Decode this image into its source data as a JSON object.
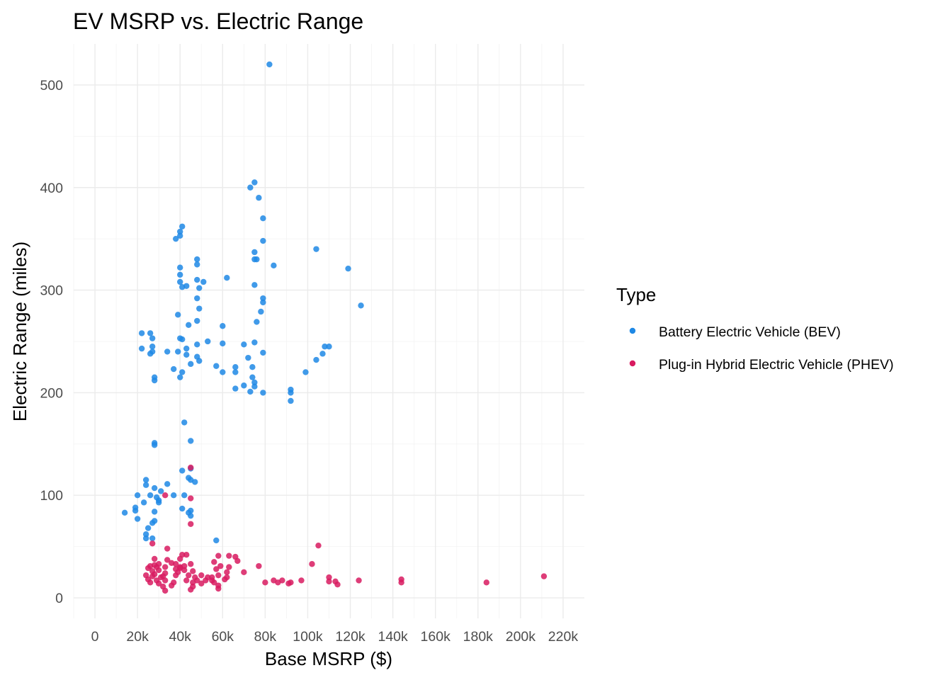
{
  "chart_data": {
    "type": "scatter",
    "title": "EV MSRP vs. Electric Range",
    "xlabel": "Base MSRP ($)",
    "ylabel": "Electric Range (miles)",
    "xlim": [
      -10000,
      230000
    ],
    "ylim": [
      -20,
      540
    ],
    "x_ticks": [
      0,
      20000,
      40000,
      60000,
      80000,
      100000,
      120000,
      140000,
      160000,
      180000,
      200000,
      220000
    ],
    "x_tick_labels": [
      "0",
      "20k",
      "40k",
      "60k",
      "80k",
      "100k",
      "120k",
      "140k",
      "160k",
      "180k",
      "200k",
      "220k"
    ],
    "y_ticks": [
      0,
      100,
      200,
      300,
      400,
      500
    ],
    "y_tick_labels": [
      "0",
      "100",
      "200",
      "300",
      "400",
      "500"
    ],
    "grid": true,
    "legend": {
      "title": "Type",
      "position": "right"
    },
    "series": [
      {
        "name": "Battery Electric Vehicle (BEV)",
        "color": "#1E88E5",
        "points": [
          [
            82000,
            520
          ],
          [
            75000,
            405
          ],
          [
            73000,
            400
          ],
          [
            77000,
            390
          ],
          [
            79000,
            370
          ],
          [
            79000,
            348
          ],
          [
            75000,
            337
          ],
          [
            75000,
            330
          ],
          [
            76000,
            330
          ],
          [
            84000,
            324
          ],
          [
            75000,
            305
          ],
          [
            79000,
            292
          ],
          [
            79000,
            288
          ],
          [
            78000,
            279
          ],
          [
            76000,
            269
          ],
          [
            70000,
            247
          ],
          [
            75000,
            249
          ],
          [
            72000,
            234
          ],
          [
            74000,
            225
          ],
          [
            66000,
            225
          ],
          [
            66000,
            220
          ],
          [
            74000,
            215
          ],
          [
            75000,
            210
          ],
          [
            75000,
            206
          ],
          [
            70000,
            207
          ],
          [
            66000,
            204
          ],
          [
            73000,
            201
          ],
          [
            79000,
            200
          ],
          [
            79000,
            239
          ],
          [
            104000,
            340
          ],
          [
            119000,
            321
          ],
          [
            125000,
            285
          ],
          [
            108000,
            245
          ],
          [
            110000,
            245
          ],
          [
            107000,
            238
          ],
          [
            104000,
            232
          ],
          [
            99000,
            220
          ],
          [
            92000,
            203
          ],
          [
            92000,
            200
          ],
          [
            92000,
            192
          ],
          [
            41000,
            362
          ],
          [
            40000,
            357
          ],
          [
            40000,
            353
          ],
          [
            38000,
            350
          ],
          [
            40000,
            322
          ],
          [
            40000,
            315
          ],
          [
            40000,
            308
          ],
          [
            41000,
            303
          ],
          [
            43000,
            304
          ],
          [
            48000,
            330
          ],
          [
            48000,
            325
          ],
          [
            48000,
            310
          ],
          [
            51000,
            308
          ],
          [
            49000,
            302
          ],
          [
            62000,
            312
          ],
          [
            60000,
            265
          ],
          [
            60000,
            248
          ],
          [
            53000,
            250
          ],
          [
            48000,
            292
          ],
          [
            49000,
            282
          ],
          [
            39000,
            276
          ],
          [
            44000,
            266
          ],
          [
            40000,
            253
          ],
          [
            41000,
            252
          ],
          [
            43000,
            243
          ],
          [
            48000,
            270
          ],
          [
            48000,
            247
          ],
          [
            43000,
            237
          ],
          [
            39000,
            240
          ],
          [
            45000,
            228
          ],
          [
            48000,
            235
          ],
          [
            49000,
            231
          ],
          [
            57000,
            226
          ],
          [
            60000,
            220
          ],
          [
            41000,
            220
          ],
          [
            40000,
            215
          ],
          [
            37000,
            223
          ],
          [
            34000,
            240
          ],
          [
            22000,
            258
          ],
          [
            26000,
            258
          ],
          [
            27000,
            253
          ],
          [
            27000,
            245
          ],
          [
            22000,
            243
          ],
          [
            27000,
            240
          ],
          [
            26000,
            238
          ],
          [
            28000,
            215
          ],
          [
            28000,
            212
          ],
          [
            28000,
            151
          ],
          [
            28000,
            149
          ],
          [
            42000,
            171
          ],
          [
            45000,
            153
          ],
          [
            45000,
            126
          ],
          [
            41000,
            124
          ],
          [
            44000,
            117
          ],
          [
            45000,
            115
          ],
          [
            47000,
            113
          ],
          [
            34000,
            111
          ],
          [
            24000,
            115
          ],
          [
            24000,
            110
          ],
          [
            31000,
            104
          ],
          [
            20000,
            100
          ],
          [
            37000,
            100
          ],
          [
            28000,
            107
          ],
          [
            23000,
            93
          ],
          [
            30000,
            95
          ],
          [
            30000,
            93
          ],
          [
            19000,
            88
          ],
          [
            19000,
            85
          ],
          [
            14000,
            83
          ],
          [
            26000,
            100
          ],
          [
            29000,
            98
          ],
          [
            41000,
            87
          ],
          [
            44000,
            83
          ],
          [
            45000,
            85
          ],
          [
            45000,
            80
          ],
          [
            28000,
            84
          ],
          [
            28000,
            75
          ],
          [
            27000,
            73
          ],
          [
            20000,
            77
          ],
          [
            25000,
            68
          ],
          [
            24000,
            62
          ],
          [
            24000,
            58
          ],
          [
            27000,
            58
          ],
          [
            57000,
            56
          ],
          [
            42000,
            100
          ]
        ]
      },
      {
        "name": "Plug-in Hybrid Electric Vehicle (PHEV)",
        "color": "#D81B60",
        "points": [
          [
            211000,
            21
          ],
          [
            184000,
            15
          ],
          [
            144000,
            18
          ],
          [
            144000,
            15
          ],
          [
            124000,
            17
          ],
          [
            113000,
            16
          ],
          [
            114000,
            13
          ],
          [
            110000,
            20
          ],
          [
            110000,
            16
          ],
          [
            105000,
            51
          ],
          [
            102000,
            33
          ],
          [
            97000,
            17
          ],
          [
            92000,
            15
          ],
          [
            91000,
            14
          ],
          [
            88000,
            17
          ],
          [
            86000,
            15
          ],
          [
            84000,
            17
          ],
          [
            80000,
            15
          ],
          [
            77000,
            31
          ],
          [
            70000,
            25
          ],
          [
            66000,
            40
          ],
          [
            67000,
            36
          ],
          [
            63000,
            41
          ],
          [
            63000,
            30
          ],
          [
            62000,
            25
          ],
          [
            62000,
            20
          ],
          [
            58000,
            41
          ],
          [
            56000,
            35
          ],
          [
            59000,
            31
          ],
          [
            57000,
            28
          ],
          [
            58000,
            22
          ],
          [
            55000,
            20
          ],
          [
            56000,
            15
          ],
          [
            58000,
            12
          ],
          [
            58000,
            9
          ],
          [
            53000,
            20
          ],
          [
            52000,
            17
          ],
          [
            50000,
            22
          ],
          [
            50000,
            14
          ],
          [
            47000,
            20
          ],
          [
            46000,
            15
          ],
          [
            46000,
            11
          ],
          [
            45000,
            8
          ],
          [
            45000,
            33
          ],
          [
            46000,
            26
          ],
          [
            44000,
            22
          ],
          [
            43000,
            17
          ],
          [
            42000,
            31
          ],
          [
            41000,
            42
          ],
          [
            40000,
            38
          ],
          [
            40000,
            30
          ],
          [
            38000,
            33
          ],
          [
            38000,
            28
          ],
          [
            39000,
            25
          ],
          [
            38000,
            22
          ],
          [
            37000,
            15
          ],
          [
            36000,
            12
          ],
          [
            34000,
            48
          ],
          [
            34000,
            37
          ],
          [
            33000,
            30
          ],
          [
            33000,
            24
          ],
          [
            32000,
            21
          ],
          [
            33000,
            17
          ],
          [
            32000,
            11
          ],
          [
            33000,
            7
          ],
          [
            30000,
            33
          ],
          [
            30000,
            27
          ],
          [
            31000,
            20
          ],
          [
            30000,
            14
          ],
          [
            29000,
            30
          ],
          [
            28000,
            38
          ],
          [
            28000,
            32
          ],
          [
            27000,
            26
          ],
          [
            27000,
            21
          ],
          [
            26000,
            15
          ],
          [
            27000,
            53
          ],
          [
            25000,
            29
          ],
          [
            24000,
            22
          ],
          [
            25000,
            18
          ],
          [
            26000,
            31
          ],
          [
            28000,
            23
          ],
          [
            29000,
            17
          ],
          [
            33000,
            100
          ],
          [
            45000,
            127
          ],
          [
            45000,
            97
          ],
          [
            45000,
            72
          ],
          [
            40000,
            29
          ],
          [
            43000,
            42
          ],
          [
            36000,
            34
          ],
          [
            55000,
            17
          ],
          [
            61000,
            18
          ],
          [
            42000,
            27
          ],
          [
            48000,
            17
          ]
        ]
      }
    ]
  }
}
